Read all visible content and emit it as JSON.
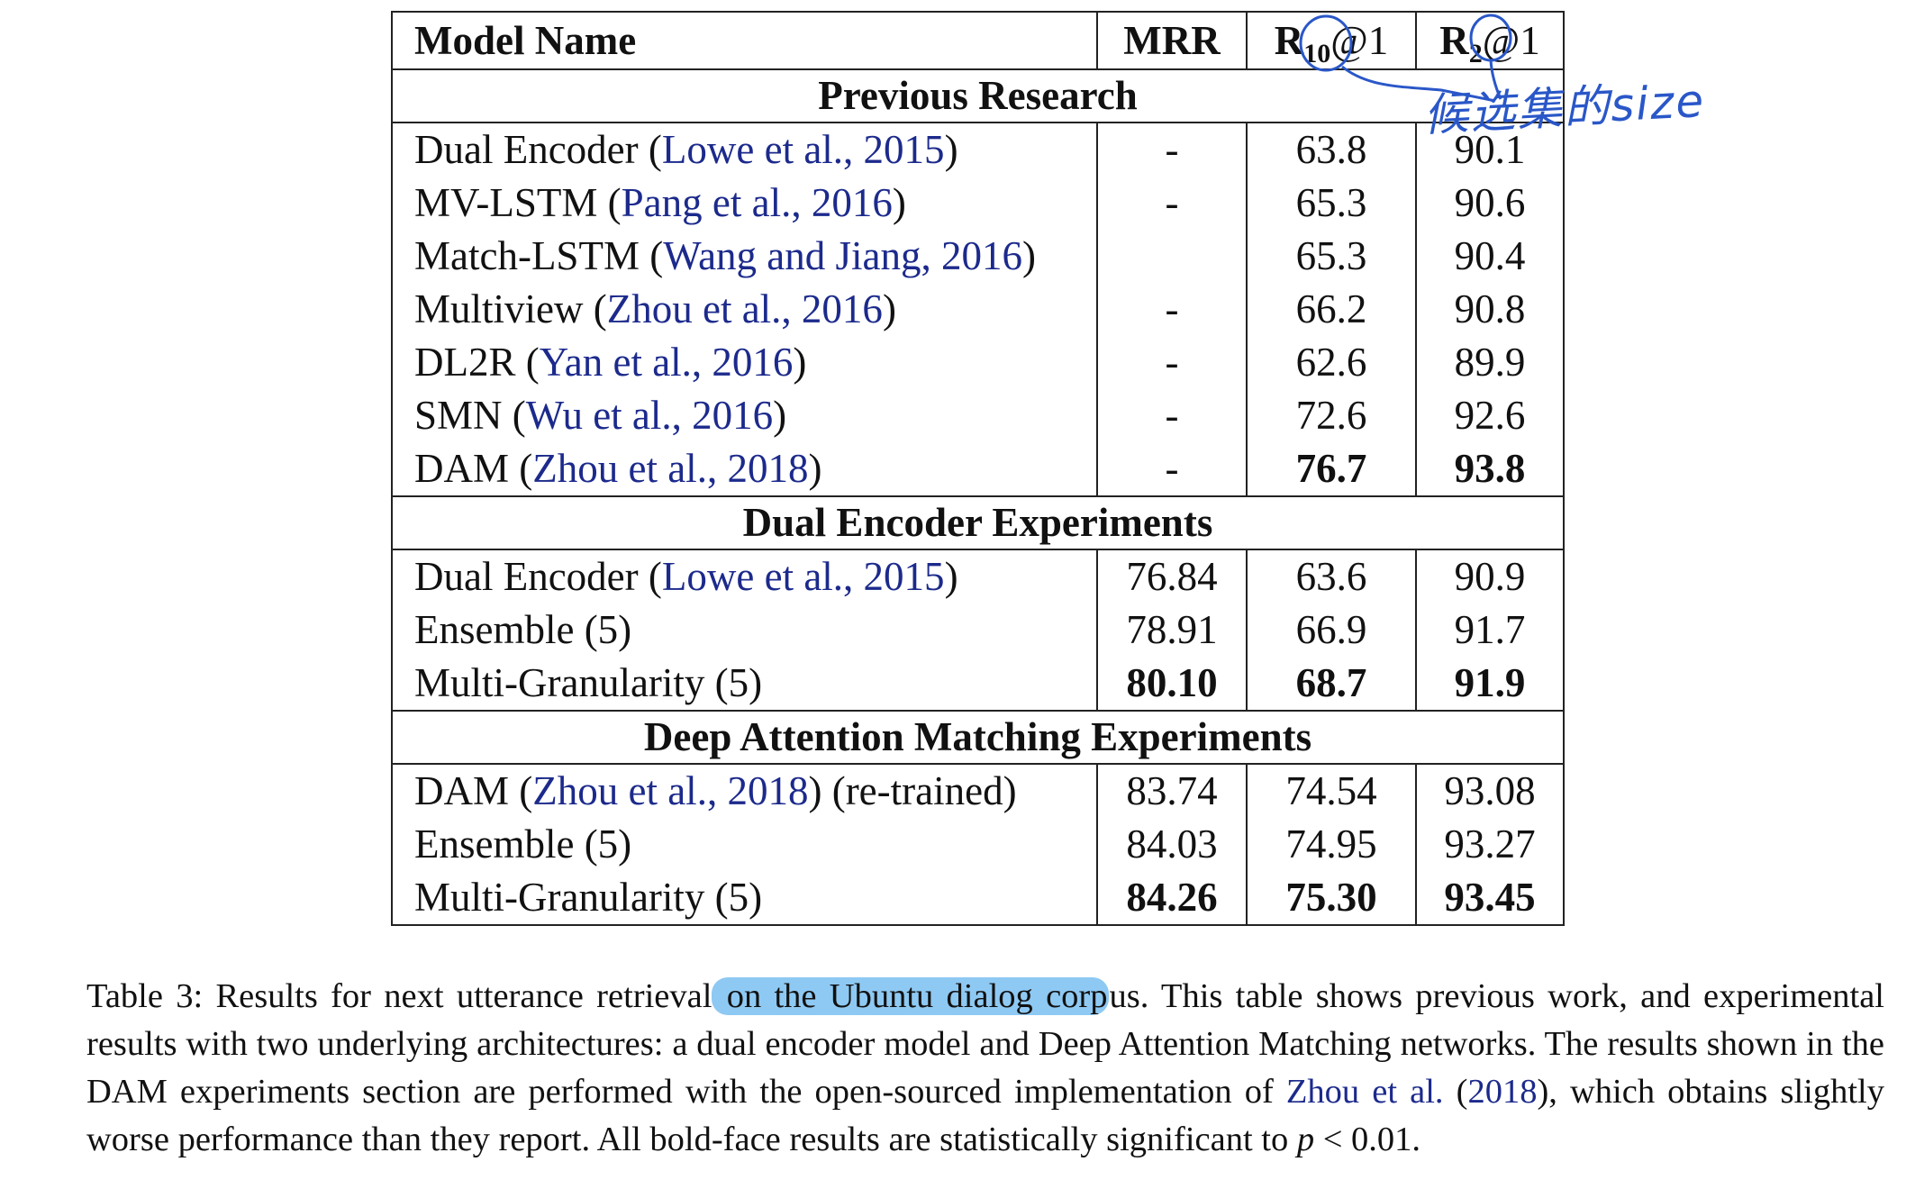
{
  "table": {
    "headers": {
      "model_name": "Model Name",
      "mrr": "MRR",
      "r10_main": "R",
      "r10_sub": "10",
      "r10_tail": "@1",
      "r2_main": "R",
      "r2_sub": "2",
      "r2_tail": "@1"
    },
    "sections": [
      {
        "title": "Previous Research",
        "rows": [
          {
            "model": "Dual Encoder (",
            "cite": "Lowe et al., 2015",
            "close": ")",
            "suffix": "",
            "mrr": "-",
            "r10": "63.8",
            "r2": "90.1"
          },
          {
            "model": "MV-LSTM (",
            "cite": "Pang et al., 2016",
            "close": ")",
            "suffix": "",
            "mrr": "-",
            "r10": "65.3",
            "r2": "90.6"
          },
          {
            "model": "Match-LSTM (",
            "cite": "Wang and Jiang, 2016",
            "close": ")",
            "suffix": "",
            "mrr": "",
            "r10": "65.3",
            "r2": "90.4"
          },
          {
            "model": "Multiview (",
            "cite": "Zhou et al., 2016",
            "close": ")",
            "suffix": "",
            "mrr": "-",
            "r10": "66.2",
            "r2": "90.8"
          },
          {
            "model": "DL2R (",
            "cite": "Yan et al., 2016",
            "close": ")",
            "suffix": "",
            "mrr": "-",
            "r10": "62.6",
            "r2": "89.9"
          },
          {
            "model": "SMN (",
            "cite": "Wu et al., 2016",
            "close": ")",
            "suffix": "",
            "mrr": "-",
            "r10": "72.6",
            "r2": "92.6"
          },
          {
            "model": "DAM (",
            "cite": "Zhou et al., 2018",
            "close": ")",
            "suffix": "",
            "mrr": "-",
            "r10": "76.7",
            "r2": "93.8"
          }
        ]
      },
      {
        "title": "Dual Encoder Experiments",
        "rows": [
          {
            "model": "Dual Encoder (",
            "cite": "Lowe et al., 2015",
            "close": ")",
            "suffix": "",
            "mrr": "76.84",
            "r10": "63.6",
            "r2": "90.9"
          },
          {
            "model": "Ensemble (5)",
            "cite": "",
            "close": "",
            "suffix": "",
            "mrr": "78.91",
            "r10": "66.9",
            "r2": "91.7"
          },
          {
            "model": "Multi-Granularity (5)",
            "cite": "",
            "close": "",
            "suffix": "",
            "mrr": "80.10",
            "r10": "68.7",
            "r2": "91.9"
          }
        ]
      },
      {
        "title": "Deep Attention Matching Experiments",
        "rows": [
          {
            "model": "DAM (",
            "cite": "Zhou et al., 2018",
            "close": ")",
            "suffix": " (re-trained)",
            "mrr": "83.74",
            "r10": "74.54",
            "r2": "93.08"
          },
          {
            "model": "Ensemble (5)",
            "cite": "",
            "close": "",
            "suffix": "",
            "mrr": "84.03",
            "r10": "74.95",
            "r2": "93.27"
          },
          {
            "model": "Multi-Granularity (5)",
            "cite": "",
            "close": "",
            "suffix": "",
            "mrr": "84.26",
            "r10": "75.30",
            "r2": "93.45"
          }
        ]
      }
    ]
  },
  "annotation": {
    "handwritten_note": "候选集的size",
    "ink_color": "#2a57c8"
  },
  "caption": {
    "part1": "Table 3: Results for next utterance retrieval",
    "highlighted": " on the Ubuntu dialog corp",
    "part2": "us. This table shows previous work, and experimental results with two underlying architectures: a dual encoder model and Deep Attention Matching networks. The results shown in the DAM experiments section are performed with the open-sourced implementation of ",
    "cite_author": "Zhou et al.",
    "cite_open": " (",
    "cite_year": "2018",
    "cite_close": ")",
    "part3": ", which obtains slightly worse performance than they report. All bold-face results are statistically significant to ",
    "math_p": "p",
    "math_rest": " < 0.01."
  },
  "colors": {
    "citation": "#1c2a8c",
    "highlight": "#8ec9f3",
    "rules": "#222222"
  }
}
